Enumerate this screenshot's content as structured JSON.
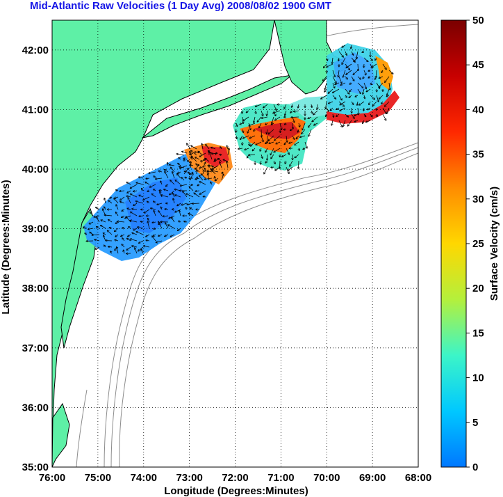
{
  "title": "Mid-Atlantic Raw Velocities (1 Day Avg) 2008/08/02 1900 GMT",
  "map": {
    "xlabel": "Longitude (Degrees:Minutes)",
    "ylabel": "Latitude (Degrees:Minutes)",
    "lon_ticks": [
      "76:00",
      "75:00",
      "74:00",
      "73:00",
      "72:00",
      "71:00",
      "70:00",
      "69:00",
      "68:00"
    ],
    "lat_ticks": [
      "42:00",
      "41:00",
      "40:00",
      "39:00",
      "38:00",
      "37:00",
      "36:00",
      "35:00"
    ],
    "lon_range": [
      -76,
      -68
    ],
    "lat_range": [
      35,
      42.5
    ],
    "land_color": "#5ef0a6",
    "grid": "dotted"
  },
  "colorbar": {
    "label": "Surface Velocity (cm/s)",
    "ticks": [
      "50",
      "45",
      "40",
      "35",
      "30",
      "25",
      "20",
      "15",
      "10",
      "5",
      "0"
    ],
    "range": [
      0,
      50
    ],
    "colors": [
      "#0078ff",
      "#00c8ff",
      "#3cf5c8",
      "#b4f03c",
      "#ffd700",
      "#ff8c00",
      "#ff2800",
      "#c80000",
      "#7a0000"
    ]
  }
}
